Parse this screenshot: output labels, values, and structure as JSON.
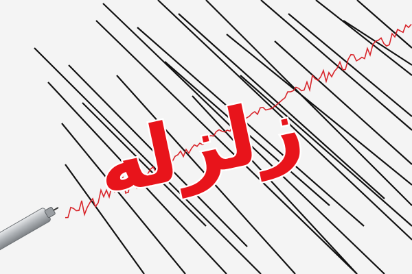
{
  "headline": "زلزله",
  "colors": {
    "background": "#f4f4f4",
    "seismic_lines": "#111111",
    "trace": "#d8242a",
    "headline": "#e8141b",
    "headline_outline": "#ffffff",
    "needle": "#b9bcc0"
  },
  "icons": [
    "seismograph-needle",
    "seismic-wave"
  ]
}
